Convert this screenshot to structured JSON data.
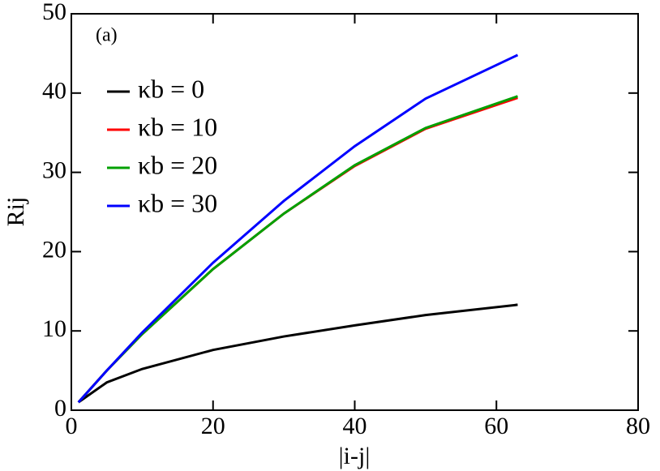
{
  "chart_data": {
    "type": "line",
    "annotation": "(a)",
    "x_label": "|i-j|",
    "y_label": "Rij",
    "x": [
      1,
      5,
      10,
      20,
      30,
      40,
      50,
      63
    ],
    "series": [
      {
        "name": "κb = 0",
        "color": "#000000",
        "values": [
          1,
          3.5,
          5.2,
          7.6,
          9.3,
          10.7,
          12.0,
          13.3
        ]
      },
      {
        "name": "κb = 10",
        "color": "#ff0000",
        "values": [
          1,
          5,
          9.6,
          17.8,
          24.8,
          30.8,
          35.5,
          39.4
        ]
      },
      {
        "name": "κb = 20",
        "color": "#00a000",
        "values": [
          1,
          5,
          9.6,
          17.8,
          24.8,
          30.9,
          35.6,
          39.6
        ]
      },
      {
        "name": "κb = 30",
        "color": "#0000ff",
        "values": [
          1,
          5,
          9.8,
          18.6,
          26.4,
          33.3,
          39.3,
          44.8
        ]
      }
    ],
    "xlim": [
      0,
      80
    ],
    "xticks": [
      0,
      20,
      40,
      60,
      80
    ],
    "ylim": [
      0,
      50
    ],
    "yticks": [
      0,
      10,
      20,
      30,
      40,
      50
    ],
    "legend": "upper-left"
  }
}
